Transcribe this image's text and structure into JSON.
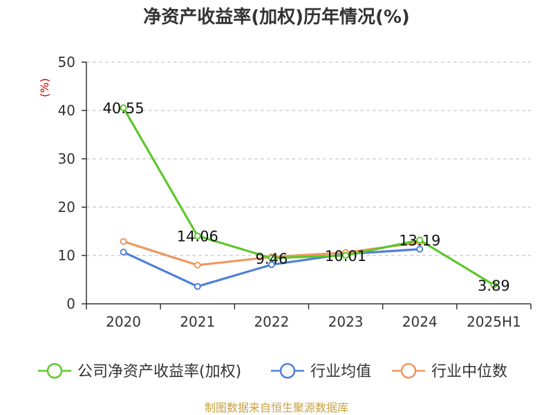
{
  "chart_data": {
    "type": "line",
    "title": "净资产收益率(加权)历年情况(%)",
    "ylabel": "(%)",
    "ylim": [
      0,
      50
    ],
    "yticks": [
      0,
      10,
      20,
      30,
      40,
      50
    ],
    "grid": true,
    "legend_position": "bottom",
    "categories": [
      "2020",
      "2021",
      "2022",
      "2023",
      "2024",
      "2025H1"
    ],
    "series": [
      {
        "name": "公司净资产收益率(加权)",
        "color": "#5cc72c",
        "values": [
          40.55,
          14.06,
          9.46,
          10.01,
          13.19,
          3.89
        ],
        "show_labels": true
      },
      {
        "name": "行业均值",
        "color": "#4f7fd9",
        "values": [
          10.7,
          3.6,
          8.1,
          10.3,
          11.3,
          null
        ],
        "show_labels": false
      },
      {
        "name": "行业中位数",
        "color": "#f0965e",
        "values": [
          12.9,
          8.0,
          9.7,
          10.6,
          12.7,
          null
        ],
        "show_labels": false
      }
    ]
  },
  "source_note": "制图数据来自恒生聚源数据库"
}
